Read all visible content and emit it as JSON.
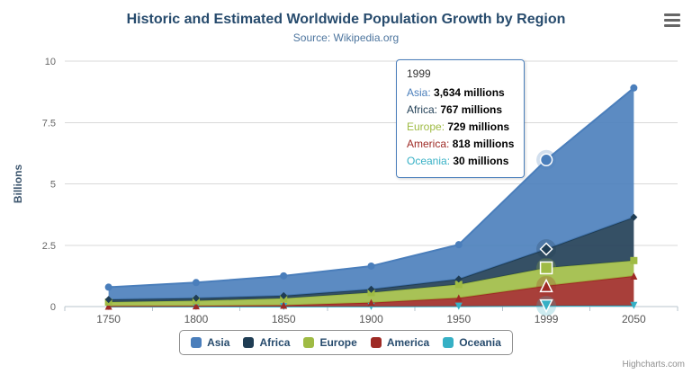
{
  "icons": {
    "context_menu": "hamburger-icon"
  },
  "chart_data": {
    "type": "area",
    "stacking": "normal",
    "title": "Historic and Estimated Worldwide Population Growth by Region",
    "subtitle": "Source: Wikipedia.org",
    "xlabel": "",
    "ylabel": "Billions",
    "ylim": [
      0,
      10
    ],
    "yticks": [
      0,
      2.5,
      5,
      7.5,
      10
    ],
    "grid": true,
    "legend_position": "bottom",
    "categories": [
      "1750",
      "1800",
      "1850",
      "1900",
      "1950",
      "1999",
      "2050"
    ],
    "value_unit": "millions",
    "series": [
      {
        "name": "Asia",
        "color": "#4a7ebb",
        "marker": "circle",
        "values": [
          502,
          635,
          809,
          947,
          1402,
          3634,
          5268
        ]
      },
      {
        "name": "Africa",
        "color": "#1f3d54",
        "marker": "diamond",
        "values": [
          106,
          107,
          111,
          133,
          221,
          767,
          1766
        ]
      },
      {
        "name": "Europe",
        "color": "#9fbb44",
        "marker": "square",
        "values": [
          163,
          203,
          276,
          408,
          547,
          729,
          628
        ]
      },
      {
        "name": "America",
        "color": "#9e2a25",
        "marker": "triangle",
        "values": [
          18,
          31,
          54,
          156,
          339,
          818,
          1201
        ]
      },
      {
        "name": "Oceania",
        "color": "#36b0c5",
        "marker": "triangle-down",
        "values": [
          2,
          2,
          2,
          6,
          13,
          30,
          46
        ]
      }
    ],
    "tooltip": {
      "category": "1999",
      "rows": [
        {
          "name": "Asia",
          "value": "3,634 millions"
        },
        {
          "name": "Africa",
          "value": "767 millions"
        },
        {
          "name": "Europe",
          "value": "729 millions"
        },
        {
          "name": "America",
          "value": "818 millions"
        },
        {
          "name": "Oceania",
          "value": "30 millions"
        }
      ]
    },
    "credits": "Highcharts.com"
  }
}
